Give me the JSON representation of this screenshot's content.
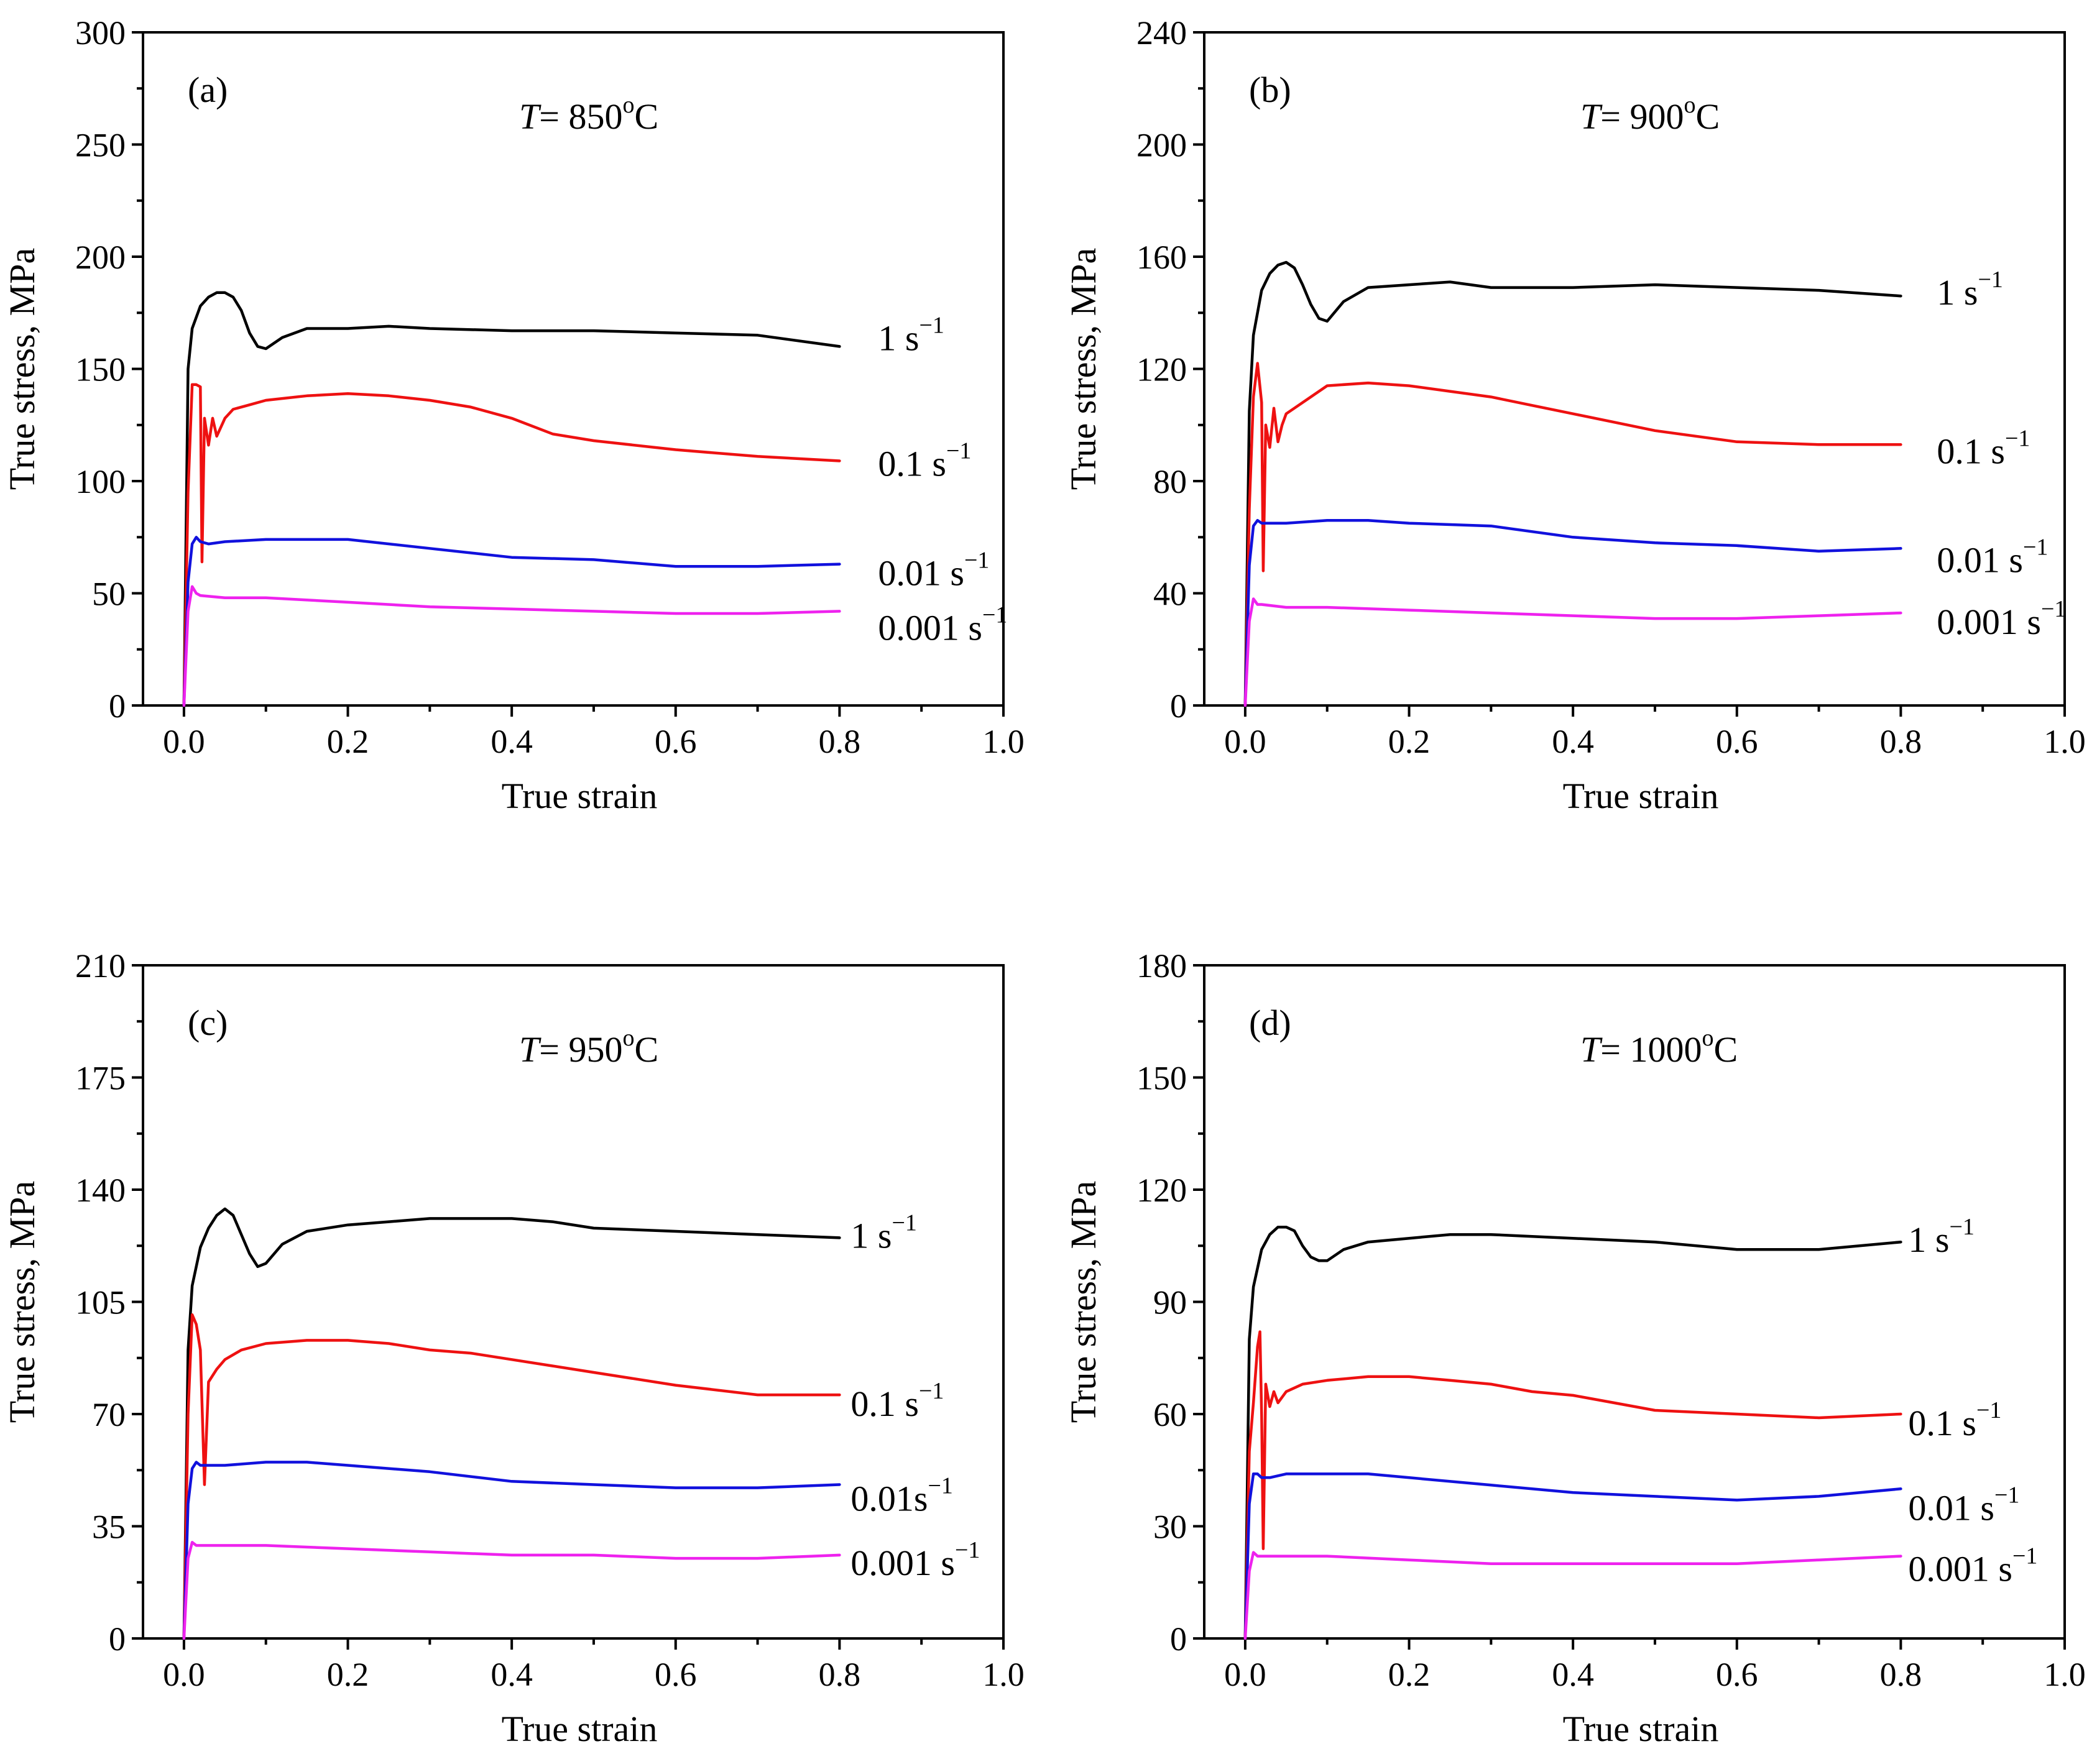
{
  "chart_data": [
    {
      "type": "line",
      "panel_label": "(a)",
      "temperature": {
        "italic": "T",
        "text": "= 850",
        "sup": "o",
        "unit": "C"
      },
      "xlabel": "True strain",
      "ylabel": "True stress, MPa",
      "xlim": [
        -0.05,
        1.0
      ],
      "ylim": [
        0,
        300
      ],
      "xticks": [
        "0.0",
        "0.2",
        "0.4",
        "0.6",
        "0.8",
        "1.0"
      ],
      "yticks": [
        "0",
        "50",
        "100",
        "150",
        "200",
        "250",
        "300"
      ],
      "series": [
        {
          "name": "1 s⁻¹",
          "label": "1 s",
          "label_sup": "−1",
          "color": "#000000",
          "x": [
            0,
            0.005,
            0.01,
            0.02,
            0.03,
            0.04,
            0.05,
            0.06,
            0.07,
            0.08,
            0.09,
            0.1,
            0.12,
            0.15,
            0.2,
            0.25,
            0.3,
            0.4,
            0.5,
            0.6,
            0.7,
            0.8
          ],
          "y": [
            0,
            150,
            168,
            178,
            182,
            184,
            184,
            182,
            176,
            166,
            160,
            159,
            164,
            168,
            168,
            169,
            168,
            167,
            167,
            166,
            165,
            160
          ]
        },
        {
          "name": "0.1 s⁻¹",
          "label": "0.1 s",
          "label_sup": "−1",
          "color": "#ee1111",
          "x": [
            0,
            0.005,
            0.01,
            0.015,
            0.02,
            0.022,
            0.025,
            0.03,
            0.035,
            0.04,
            0.045,
            0.05,
            0.06,
            0.08,
            0.1,
            0.15,
            0.2,
            0.25,
            0.3,
            0.35,
            0.4,
            0.45,
            0.5,
            0.6,
            0.7,
            0.8
          ],
          "y": [
            0,
            95,
            143,
            143,
            142,
            64,
            128,
            116,
            128,
            120,
            124,
            128,
            132,
            134,
            136,
            138,
            139,
            138,
            136,
            133,
            128,
            121,
            118,
            114,
            111,
            109
          ]
        },
        {
          "name": "0.01 s⁻¹",
          "label": "0.01 s",
          "label_sup": "−1",
          "color": "#1111dd",
          "x": [
            0,
            0.005,
            0.01,
            0.015,
            0.02,
            0.03,
            0.05,
            0.1,
            0.15,
            0.2,
            0.3,
            0.4,
            0.5,
            0.6,
            0.7,
            0.8
          ],
          "y": [
            0,
            55,
            72,
            75,
            73,
            72,
            73,
            74,
            74,
            74,
            70,
            66,
            65,
            62,
            62,
            63
          ]
        },
        {
          "name": "0.001 s⁻¹",
          "label": "0.001 s",
          "label_sup": "−1",
          "color": "#ee22ee",
          "x": [
            0,
            0.005,
            0.01,
            0.015,
            0.02,
            0.05,
            0.1,
            0.2,
            0.3,
            0.4,
            0.5,
            0.6,
            0.7,
            0.8
          ],
          "y": [
            0,
            42,
            53,
            50,
            49,
            48,
            48,
            46,
            44,
            43,
            42,
            41,
            41,
            42
          ]
        }
      ]
    },
    {
      "type": "line",
      "panel_label": "(b)",
      "temperature": {
        "italic": "T",
        "text": "= 900",
        "sup": "o",
        "unit": "C"
      },
      "xlabel": "True strain",
      "ylabel": "True stress, MPa",
      "xlim": [
        -0.05,
        1.0
      ],
      "ylim": [
        0,
        240
      ],
      "xticks": [
        "0.0",
        "0.2",
        "0.4",
        "0.6",
        "0.8",
        "1.0"
      ],
      "yticks": [
        "0",
        "40",
        "80",
        "120",
        "160",
        "200",
        "240"
      ],
      "series": [
        {
          "name": "1 s⁻¹",
          "label": "1 s",
          "label_sup": "−1",
          "color": "#000000",
          "x": [
            0,
            0.005,
            0.01,
            0.02,
            0.03,
            0.04,
            0.05,
            0.06,
            0.07,
            0.08,
            0.09,
            0.1,
            0.12,
            0.15,
            0.2,
            0.25,
            0.3,
            0.4,
            0.5,
            0.6,
            0.7,
            0.8
          ],
          "y": [
            0,
            105,
            132,
            148,
            154,
            157,
            158,
            156,
            150,
            143,
            138,
            137,
            144,
            149,
            150,
            151,
            149,
            149,
            150,
            149,
            148,
            146
          ]
        },
        {
          "name": "0.1 s⁻¹",
          "label": "0.1 s",
          "label_sup": "−1",
          "color": "#ee1111",
          "x": [
            0,
            0.005,
            0.01,
            0.015,
            0.02,
            0.022,
            0.025,
            0.03,
            0.035,
            0.04,
            0.045,
            0.05,
            0.06,
            0.08,
            0.1,
            0.15,
            0.2,
            0.25,
            0.3,
            0.35,
            0.4,
            0.45,
            0.5,
            0.6,
            0.7,
            0.8
          ],
          "y": [
            0,
            70,
            110,
            122,
            108,
            48,
            100,
            92,
            106,
            94,
            100,
            104,
            106,
            110,
            114,
            115,
            114,
            112,
            110,
            107,
            104,
            101,
            98,
            94,
            93,
            93
          ]
        },
        {
          "name": "0.01 s⁻¹",
          "label": "0.01 s",
          "label_sup": "−1",
          "color": "#1111dd",
          "x": [
            0,
            0.005,
            0.01,
            0.015,
            0.02,
            0.03,
            0.05,
            0.1,
            0.15,
            0.2,
            0.3,
            0.4,
            0.5,
            0.6,
            0.7,
            0.8
          ],
          "y": [
            0,
            50,
            64,
            66,
            65,
            65,
            65,
            66,
            66,
            65,
            64,
            60,
            58,
            57,
            55,
            56
          ]
        },
        {
          "name": "0.001 s⁻¹",
          "label": "0.001 s",
          "label_sup": "−1",
          "color": "#ee22ee",
          "x": [
            0,
            0.005,
            0.01,
            0.015,
            0.02,
            0.05,
            0.1,
            0.2,
            0.3,
            0.4,
            0.5,
            0.6,
            0.7,
            0.8
          ],
          "y": [
            0,
            30,
            38,
            36,
            36,
            35,
            35,
            34,
            33,
            32,
            31,
            31,
            32,
            33
          ]
        }
      ]
    },
    {
      "type": "line",
      "panel_label": "(c)",
      "temperature": {
        "italic": "T",
        "text": "= 950",
        "sup": "o",
        "unit": "C"
      },
      "xlabel": "True strain",
      "ylabel": "True stress, MPa",
      "xlim": [
        -0.05,
        1.0
      ],
      "ylim": [
        0,
        210
      ],
      "xticks": [
        "0.0",
        "0.2",
        "0.4",
        "0.6",
        "0.8",
        "1.0"
      ],
      "yticks": [
        "0",
        "35",
        "70",
        "105",
        "140",
        "175",
        "210"
      ],
      "series": [
        {
          "name": "1 s⁻¹",
          "label": "1 s",
          "label_sup": "−1",
          "color": "#000000",
          "x": [
            0,
            0.005,
            0.01,
            0.02,
            0.03,
            0.04,
            0.05,
            0.06,
            0.07,
            0.08,
            0.09,
            0.1,
            0.12,
            0.15,
            0.2,
            0.25,
            0.3,
            0.35,
            0.4,
            0.45,
            0.5,
            0.6,
            0.7,
            0.8
          ],
          "y": [
            0,
            90,
            110,
            122,
            128,
            132,
            134,
            132,
            126,
            120,
            116,
            117,
            123,
            127,
            129,
            130,
            131,
            131,
            131,
            130,
            128,
            127,
            126,
            125
          ]
        },
        {
          "name": "0.1 s⁻¹",
          "label": "0.1 s",
          "label_sup": "−1",
          "color": "#ee1111",
          "x": [
            0,
            0.005,
            0.01,
            0.015,
            0.02,
            0.025,
            0.03,
            0.04,
            0.05,
            0.07,
            0.1,
            0.15,
            0.2,
            0.25,
            0.3,
            0.35,
            0.4,
            0.45,
            0.5,
            0.6,
            0.7,
            0.8
          ],
          "y": [
            0,
            70,
            101,
            98,
            90,
            48,
            80,
            84,
            87,
            90,
            92,
            93,
            93,
            92,
            90,
            89,
            87,
            85,
            83,
            79,
            76,
            76
          ]
        },
        {
          "name": "0.01 s⁻¹",
          "label": "0.01s",
          "label_sup": "−1",
          "color": "#1111dd",
          "x": [
            0,
            0.005,
            0.01,
            0.015,
            0.02,
            0.03,
            0.05,
            0.1,
            0.15,
            0.2,
            0.3,
            0.4,
            0.5,
            0.6,
            0.7,
            0.8
          ],
          "y": [
            0,
            42,
            53,
            55,
            54,
            54,
            54,
            55,
            55,
            54,
            52,
            49,
            48,
            47,
            47,
            48
          ]
        },
        {
          "name": "0.001 s⁻¹",
          "label": "0.001 s",
          "label_sup": "−1",
          "color": "#ee22ee",
          "x": [
            0,
            0.005,
            0.01,
            0.015,
            0.02,
            0.05,
            0.1,
            0.2,
            0.3,
            0.4,
            0.5,
            0.6,
            0.7,
            0.8
          ],
          "y": [
            0,
            25,
            30,
            29,
            29,
            29,
            29,
            28,
            27,
            26,
            26,
            25,
            25,
            26
          ]
        }
      ]
    },
    {
      "type": "line",
      "panel_label": "(d)",
      "temperature": {
        "italic": "T",
        "text": "= 1000",
        "sup": "o",
        "unit": "C"
      },
      "xlabel": "True strain",
      "ylabel": "True stress, MPa",
      "xlim": [
        -0.05,
        1.0
      ],
      "ylim": [
        0,
        180
      ],
      "xticks": [
        "0.0",
        "0.2",
        "0.4",
        "0.6",
        "0.8",
        "1.0"
      ],
      "yticks": [
        "0",
        "30",
        "60",
        "90",
        "120",
        "150",
        "180"
      ],
      "series": [
        {
          "name": "1 s⁻¹",
          "label": "1 s",
          "label_sup": "−1",
          "color": "#000000",
          "x": [
            0,
            0.005,
            0.01,
            0.02,
            0.03,
            0.04,
            0.05,
            0.06,
            0.07,
            0.08,
            0.09,
            0.1,
            0.12,
            0.15,
            0.2,
            0.25,
            0.3,
            0.4,
            0.5,
            0.6,
            0.7,
            0.8
          ],
          "y": [
            0,
            80,
            94,
            104,
            108,
            110,
            110,
            109,
            105,
            102,
            101,
            101,
            104,
            106,
            107,
            108,
            108,
            107,
            106,
            104,
            104,
            106
          ]
        },
        {
          "name": "0.1 s⁻¹",
          "label": "0.1 s",
          "label_sup": "−1",
          "color": "#ee1111",
          "x": [
            0,
            0.005,
            0.01,
            0.015,
            0.018,
            0.02,
            0.022,
            0.025,
            0.03,
            0.035,
            0.04,
            0.05,
            0.07,
            0.1,
            0.15,
            0.2,
            0.25,
            0.3,
            0.35,
            0.4,
            0.45,
            0.5,
            0.6,
            0.7,
            0.8
          ],
          "y": [
            0,
            50,
            63,
            78,
            82,
            60,
            24,
            68,
            62,
            66,
            63,
            66,
            68,
            69,
            70,
            70,
            69,
            68,
            66,
            65,
            63,
            61,
            60,
            59,
            60
          ]
        },
        {
          "name": "0.01 s⁻¹",
          "label": "0.01 s",
          "label_sup": "−1",
          "color": "#1111dd",
          "x": [
            0,
            0.005,
            0.01,
            0.015,
            0.02,
            0.03,
            0.05,
            0.1,
            0.15,
            0.2,
            0.3,
            0.4,
            0.5,
            0.6,
            0.7,
            0.8
          ],
          "y": [
            0,
            36,
            44,
            44,
            43,
            43,
            44,
            44,
            44,
            43,
            41,
            39,
            38,
            37,
            38,
            40
          ]
        },
        {
          "name": "0.001 s⁻¹",
          "label": "0.001 s",
          "label_sup": "−1",
          "color": "#ee22ee",
          "x": [
            0,
            0.005,
            0.01,
            0.015,
            0.02,
            0.05,
            0.1,
            0.2,
            0.3,
            0.4,
            0.5,
            0.6,
            0.7,
            0.8
          ],
          "y": [
            0,
            18,
            23,
            22,
            22,
            22,
            22,
            21,
            20,
            20,
            20,
            20,
            21,
            22
          ]
        }
      ]
    }
  ]
}
